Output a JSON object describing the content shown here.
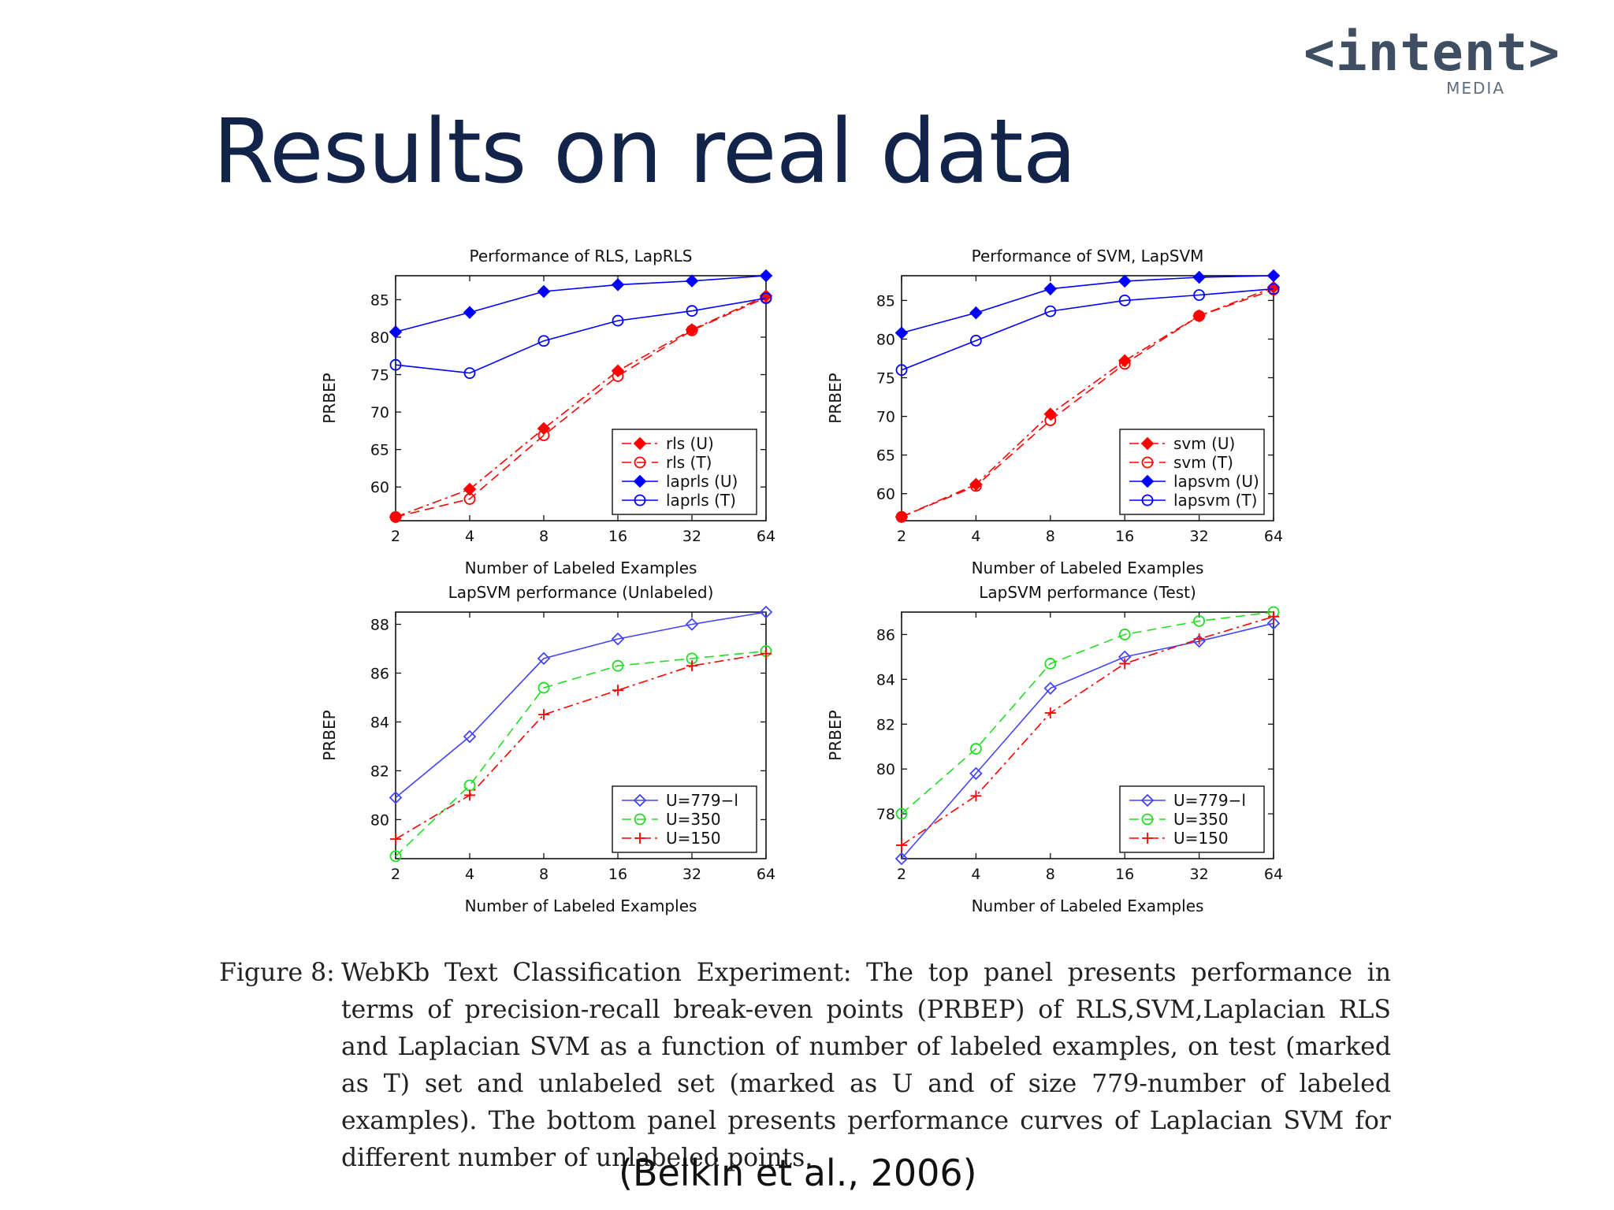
{
  "logo": {
    "main": "<intent>",
    "sub": "MEDIA"
  },
  "slide_title": "Results on real data",
  "caption": {
    "label": "Figure 8:",
    "text": "WebKb Text Classification Experiment: The top panel presents performance in terms of precision-recall break-even points (PRBEP) of RLS,SVM,Laplacian RLS and Laplacian SVM as a function of number of labeled examples, on test (marked as T) set and unlabeled set (marked as U and of size 779-number of labeled examples). The bottom panel presents performance curves of Laplacian SVM for different number of unlabeled points."
  },
  "citation": "(Belkin et al., 2006)",
  "chart_data": [
    {
      "type": "line",
      "title": "Performance of RLS, LapRLS",
      "xlabel": "Number of Labeled Examples",
      "ylabel": "PRBEP",
      "x": [
        2,
        4,
        8,
        16,
        32,
        64
      ],
      "x_scale": "log2",
      "xlim": [
        2,
        64
      ],
      "ylim": [
        55.5,
        88.2
      ],
      "yticks": [
        60,
        65,
        70,
        75,
        80,
        85
      ],
      "legend_position": "bottom-right",
      "series": [
        {
          "name": "rls (U)",
          "values": [
            56.0,
            59.7,
            67.8,
            75.5,
            81.0,
            85.5
          ],
          "color": "#ff0000",
          "dash": "dashdot",
          "marker": "diamond-filled"
        },
        {
          "name": "rls (T)",
          "values": [
            56.0,
            58.4,
            66.9,
            74.8,
            80.9,
            85.3
          ],
          "color": "#ff0000",
          "dash": "dashed",
          "marker": "circle-open"
        },
        {
          "name": "laprls (U)",
          "values": [
            80.7,
            83.3,
            86.1,
            87.0,
            87.5,
            88.2
          ],
          "color": "#0000ff",
          "dash": "solid",
          "marker": "diamond-filled"
        },
        {
          "name": "laprls (T)",
          "values": [
            76.3,
            75.2,
            79.5,
            82.2,
            83.5,
            85.2
          ],
          "color": "#0000ff",
          "dash": "solid",
          "marker": "circle-open"
        }
      ]
    },
    {
      "type": "line",
      "title": "Performance of SVM, LapSVM",
      "xlabel": "Number of Labeled Examples",
      "ylabel": "PRBEP",
      "x": [
        2,
        4,
        8,
        16,
        32,
        64
      ],
      "x_scale": "log2",
      "xlim": [
        2,
        64
      ],
      "ylim": [
        56.5,
        88.2
      ],
      "yticks": [
        60,
        65,
        70,
        75,
        80,
        85
      ],
      "legend_position": "bottom-right",
      "series": [
        {
          "name": "svm (U)",
          "values": [
            57.0,
            61.2,
            70.3,
            77.2,
            83.0,
            86.7
          ],
          "color": "#ff0000",
          "dash": "dashdot",
          "marker": "diamond-filled"
        },
        {
          "name": "svm (T)",
          "values": [
            57.0,
            61.0,
            69.5,
            76.8,
            83.0,
            86.4
          ],
          "color": "#ff0000",
          "dash": "dashed",
          "marker": "circle-open"
        },
        {
          "name": "lapsvm (U)",
          "values": [
            80.8,
            83.4,
            86.5,
            87.5,
            88.0,
            88.2
          ],
          "color": "#0000ff",
          "dash": "solid",
          "marker": "diamond-filled"
        },
        {
          "name": "lapsvm (T)",
          "values": [
            76.0,
            79.8,
            83.6,
            85.0,
            85.7,
            86.5
          ],
          "color": "#0000ff",
          "dash": "solid",
          "marker": "circle-open"
        }
      ]
    },
    {
      "type": "line",
      "title": "LapSVM performance (Unlabeled)",
      "xlabel": "Number of Labeled Examples",
      "ylabel": "PRBEP",
      "x": [
        2,
        4,
        8,
        16,
        32,
        64
      ],
      "x_scale": "log2",
      "xlim": [
        2,
        64
      ],
      "ylim": [
        78.4,
        88.5
      ],
      "yticks": [
        80,
        82,
        84,
        86,
        88
      ],
      "legend_position": "bottom-right",
      "series": [
        {
          "name": "U=779−l",
          "values": [
            80.9,
            83.4,
            86.6,
            87.4,
            88.0,
            88.5
          ],
          "color": "#4444ff",
          "dash": "solid",
          "marker": "diamond-open"
        },
        {
          "name": "U=350",
          "values": [
            78.5,
            81.4,
            85.4,
            86.3,
            86.6,
            86.9
          ],
          "color": "#22dd22",
          "dash": "dashed",
          "marker": "circle-open"
        },
        {
          "name": "U=150",
          "values": [
            79.2,
            81.0,
            84.3,
            85.3,
            86.3,
            86.8
          ],
          "color": "#ff0000",
          "dash": "dashdot",
          "marker": "plus"
        }
      ]
    },
    {
      "type": "line",
      "title": "LapSVM performance (Test)",
      "xlabel": "Number of Labeled Examples",
      "ylabel": "PRBEP",
      "x": [
        2,
        4,
        8,
        16,
        32,
        64
      ],
      "x_scale": "log2",
      "xlim": [
        2,
        64
      ],
      "ylim": [
        76.0,
        87.0
      ],
      "yticks": [
        78,
        80,
        82,
        84,
        86
      ],
      "legend_position": "bottom-right",
      "series": [
        {
          "name": "U=779−l",
          "values": [
            76.0,
            79.8,
            83.6,
            85.0,
            85.7,
            86.5
          ],
          "color": "#4444ff",
          "dash": "solid",
          "marker": "diamond-open"
        },
        {
          "name": "U=350",
          "values": [
            78.0,
            80.9,
            84.7,
            86.0,
            86.6,
            87.0
          ],
          "color": "#22dd22",
          "dash": "dashed",
          "marker": "circle-open"
        },
        {
          "name": "U=150",
          "values": [
            76.6,
            78.8,
            82.5,
            84.7,
            85.8,
            86.8
          ],
          "color": "#ff0000",
          "dash": "dashdot",
          "marker": "plus"
        }
      ]
    }
  ]
}
